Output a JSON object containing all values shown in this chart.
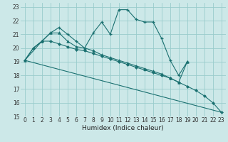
{
  "xlabel": "Humidex (Indice chaleur)",
  "xlim": [
    -0.5,
    23.5
  ],
  "ylim": [
    15,
    23.3
  ],
  "yticks": [
    15,
    16,
    17,
    18,
    19,
    20,
    21,
    22,
    23
  ],
  "xticks": [
    0,
    1,
    2,
    3,
    4,
    5,
    6,
    7,
    8,
    9,
    10,
    11,
    12,
    13,
    14,
    15,
    16,
    17,
    18,
    19,
    20,
    21,
    22,
    23
  ],
  "background_color": "#cce8e8",
  "grid_color": "#99cccc",
  "line_color": "#1a7070",
  "curve1": {
    "x": [
      0,
      1,
      2,
      3,
      4,
      5,
      6,
      7,
      8,
      9,
      10,
      11,
      12,
      13,
      14,
      15,
      16,
      17,
      18,
      19
    ],
    "y": [
      19.1,
      20.0,
      20.5,
      21.1,
      21.5,
      21.0,
      20.5,
      20.0,
      21.1,
      21.9,
      21.0,
      22.8,
      22.8,
      22.1,
      21.9,
      21.9,
      20.7,
      19.1,
      18.0,
      19.0
    ]
  },
  "curve2": {
    "x": [
      0,
      2,
      3,
      4,
      5,
      6,
      7,
      8,
      9,
      10,
      11,
      12,
      13,
      14,
      15,
      16,
      17,
      18,
      19
    ],
    "y": [
      19.1,
      20.5,
      21.1,
      21.1,
      20.5,
      20.1,
      20.0,
      19.8,
      19.5,
      19.3,
      19.1,
      18.9,
      18.7,
      18.5,
      18.3,
      18.1,
      17.8,
      17.5,
      19.0
    ]
  },
  "curve3": {
    "x": [
      0,
      1,
      2,
      3,
      4,
      5,
      6,
      7,
      8,
      9,
      10,
      11,
      12,
      13,
      14,
      15,
      16,
      17,
      18,
      19,
      20,
      21,
      22,
      23
    ],
    "y": [
      19.1,
      20.0,
      20.5,
      20.5,
      20.3,
      20.1,
      19.9,
      19.8,
      19.6,
      19.4,
      19.2,
      19.0,
      18.8,
      18.6,
      18.4,
      18.2,
      18.0,
      17.8,
      17.5,
      17.2,
      16.9,
      16.5,
      16.0,
      15.3
    ]
  },
  "curve4": {
    "x": [
      0,
      23
    ],
    "y": [
      19.1,
      15.3
    ]
  }
}
